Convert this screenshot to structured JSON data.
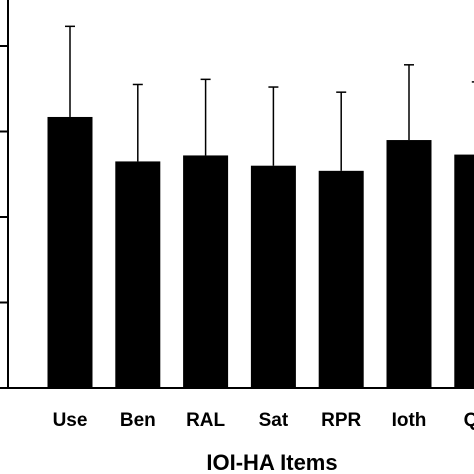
{
  "chart_data": {
    "type": "bar",
    "xlabel": "IOI-HA Items",
    "ylabel": "",
    "categories": [
      "Use",
      "Ben",
      "RAL",
      "Sat",
      "RPR",
      "Ioth",
      "Qo"
    ],
    "values": [
      3.17,
      2.65,
      2.72,
      2.6,
      2.54,
      2.9,
      2.73
    ],
    "errors": [
      1.06,
      0.9,
      0.89,
      0.92,
      0.92,
      0.88,
      0.85
    ],
    "ylim": [
      0,
      4.5
    ],
    "yticks": [
      0,
      1,
      2,
      3,
      4
    ],
    "grid": false,
    "legend": "none",
    "bar_color": "#000000"
  }
}
